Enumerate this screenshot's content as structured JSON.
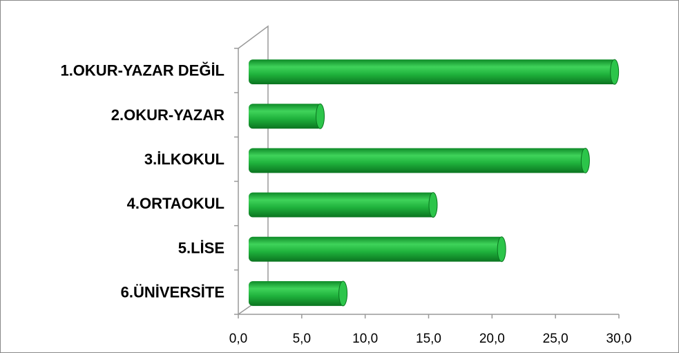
{
  "chart_data": {
    "type": "bar",
    "orientation": "horizontal",
    "categories": [
      "1.OKUR-YAZAR DEĞİL",
      "2.OKUR-YAZAR",
      "3.İLKOKUL",
      "4.ORTAOKUL",
      "5.LİSE",
      "6.ÜNİVERSİTE"
    ],
    "values": [
      29.0,
      5.8,
      26.7,
      14.7,
      20.1,
      7.6
    ],
    "color": "#1fb23c",
    "xlim": [
      0,
      30
    ],
    "xticks": [
      {
        "value": 0,
        "label": "0,0"
      },
      {
        "value": 5,
        "label": "5,0"
      },
      {
        "value": 10,
        "label": "10,0"
      },
      {
        "value": 15,
        "label": "15,0"
      },
      {
        "value": 20,
        "label": "20,0"
      },
      {
        "value": 25,
        "label": "25,0"
      },
      {
        "value": 30,
        "label": "30,0"
      }
    ],
    "grid": false
  }
}
